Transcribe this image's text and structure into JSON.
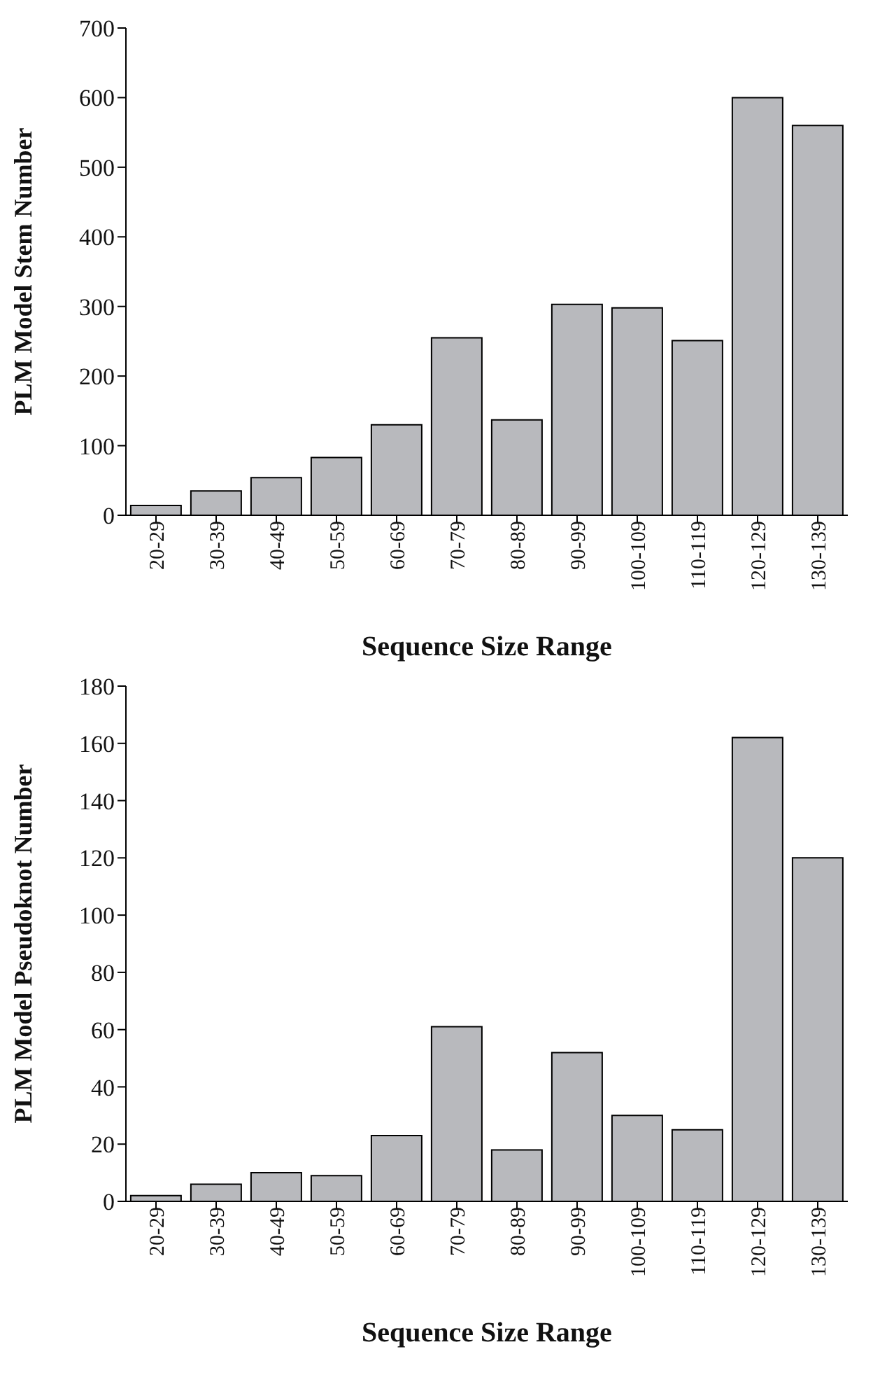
{
  "chart_data": [
    {
      "type": "bar",
      "xlabel": "Sequence Size Range",
      "ylabel": "PLM Model Stem Number",
      "categories": [
        "20-29",
        "30-39",
        "40-49",
        "50-59",
        "60-69",
        "70-79",
        "80-89",
        "90-99",
        "100-109",
        "110-119",
        "120-129",
        "130-139"
      ],
      "values": [
        14,
        35,
        54,
        83,
        130,
        255,
        137,
        303,
        298,
        251,
        600,
        560
      ],
      "color": "#b8b9bd",
      "ylim": [
        0,
        700
      ],
      "yticks": [
        0,
        100,
        200,
        300,
        400,
        500,
        600,
        700
      ],
      "grid": false,
      "legend": false
    },
    {
      "type": "bar",
      "xlabel": "Sequence Size Range",
      "ylabel": "PLM Model Pseudoknot Number",
      "categories": [
        "20-29",
        "30-39",
        "40-49",
        "50-59",
        "60-69",
        "70-79",
        "80-89",
        "90-99",
        "100-109",
        "110-119",
        "120-129",
        "130-139"
      ],
      "values": [
        2,
        6,
        10,
        9,
        23,
        61,
        18,
        52,
        30,
        25,
        162,
        120
      ],
      "color": "#b8b9bd",
      "ylim": [
        0,
        180
      ],
      "yticks": [
        0,
        20,
        40,
        60,
        80,
        100,
        120,
        140,
        160,
        180
      ],
      "grid": false,
      "legend": false
    }
  ]
}
